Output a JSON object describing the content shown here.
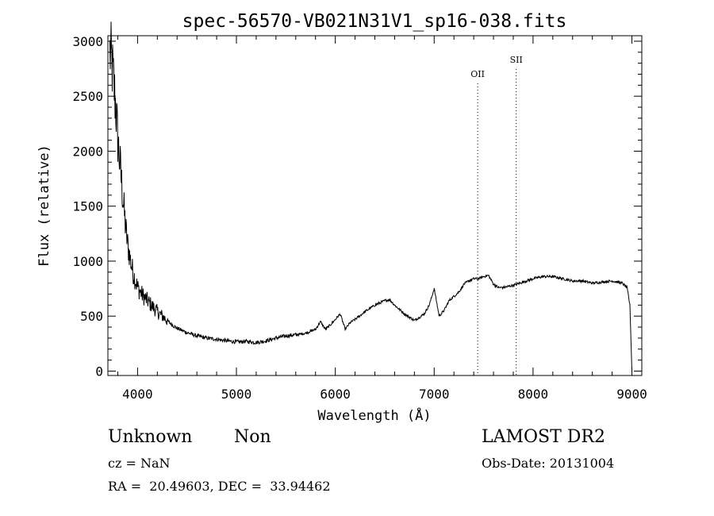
{
  "chart_data": {
    "type": "line",
    "title": "spec-56570-VB021N31V1_sp16-038.fits",
    "xlabel": "Wavelength (Å)",
    "ylabel": "Flux (relative)",
    "xlim": [
      3700,
      9100
    ],
    "ylim": [
      -40,
      3050
    ],
    "xticks": [
      4000,
      5000,
      6000,
      7000,
      8000,
      9000
    ],
    "yticks": [
      0,
      500,
      1000,
      1500,
      2000,
      2500,
      3000
    ],
    "grid": false,
    "line_color": "#000000",
    "annotations": [
      {
        "label": "OII",
        "x": 7440
      },
      {
        "label": "SII",
        "x": 7830
      }
    ],
    "series": [
      {
        "x": [
          3720,
          3740,
          3760,
          3780,
          3800,
          3820,
          3840,
          3860,
          3880,
          3900,
          3920,
          3940,
          3960,
          3980,
          4000,
          4050,
          4100,
          4150,
          4200,
          4250,
          4300,
          4350,
          4400,
          4500,
          4600,
          4700,
          4800,
          4900,
          5000,
          5100,
          5200,
          5300,
          5400,
          5500,
          5600,
          5700,
          5800,
          5850,
          5900,
          5950,
          6000,
          6050,
          6100,
          6150,
          6200,
          6300,
          6400,
          6500,
          6550,
          6600,
          6700,
          6800,
          6900,
          6950,
          7000,
          7050,
          7100,
          7150,
          7200,
          7250,
          7300,
          7350,
          7400,
          7450,
          7500,
          7550,
          7600,
          7650,
          7700,
          7800,
          7900,
          8000,
          8100,
          8200,
          8300,
          8400,
          8500,
          8600,
          8700,
          8800,
          8900,
          8950,
          8980,
          9000
        ],
        "y": [
          2900,
          2800,
          2600,
          2400,
          2100,
          1900,
          1700,
          1500,
          1300,
          1150,
          1050,
          950,
          880,
          820,
          760,
          690,
          640,
          590,
          540,
          500,
          460,
          420,
          390,
          350,
          320,
          300,
          290,
          275,
          265,
          270,
          260,
          275,
          300,
          320,
          330,
          345,
          380,
          450,
          380,
          420,
          470,
          520,
          380,
          440,
          470,
          540,
          600,
          640,
          650,
          600,
          520,
          460,
          520,
          600,
          750,
          500,
          550,
          640,
          680,
          720,
          790,
          820,
          840,
          840,
          860,
          870,
          790,
          760,
          760,
          780,
          810,
          840,
          860,
          860,
          840,
          820,
          820,
          800,
          810,
          820,
          800,
          760,
          600,
          0
        ]
      }
    ]
  },
  "info": {
    "class_text": "Unknown",
    "subclass_text": "Non",
    "survey": "LAMOST DR2",
    "cz": "cz = NaN",
    "obs_date": "Obs-Date: 20131004",
    "coords": "RA =  20.49603, DEC =  33.94462"
  }
}
